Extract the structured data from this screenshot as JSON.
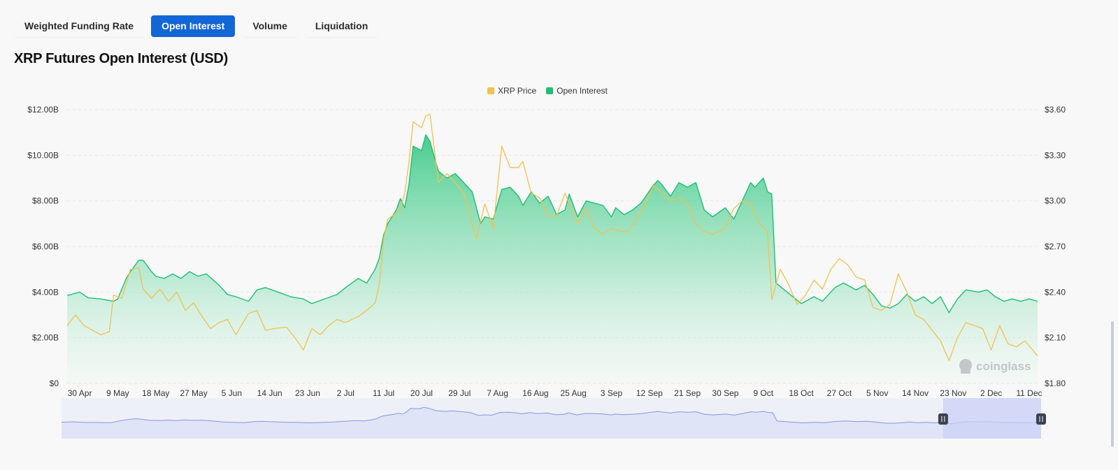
{
  "tabs": [
    {
      "label": "Weighted Funding Rate",
      "active": false
    },
    {
      "label": "Open Interest",
      "active": true
    },
    {
      "label": "Volume",
      "active": false
    },
    {
      "label": "Liquidation",
      "active": false
    }
  ],
  "title": "XRP Futures Open Interest (USD)",
  "watermark": "coinglass",
  "colors": {
    "price": "#f2c14e",
    "oi_line": "#1fbf75",
    "oi_fill_top": "#5fd39c",
    "nav_fill": "#dfe4f7",
    "nav_line": "#8797e0",
    "nav_window": "#c9d2f5",
    "active_tab": "#1366d6"
  },
  "chart_data": {
    "type": "area",
    "legend": [
      "XRP Price",
      "Open Interest"
    ],
    "legend_position": "top-center",
    "x_tick_labels": [
      "30 Apr",
      "9 May",
      "18 May",
      "27 May",
      "5 Jun",
      "14 Jun",
      "23 Jun",
      "2 Jul",
      "11 Jul",
      "20 Jul",
      "29 Jul",
      "7 Aug",
      "16 Aug",
      "25 Aug",
      "3 Sep",
      "12 Sep",
      "21 Sep",
      "30 Sep",
      "9 Oct",
      "18 Oct",
      "27 Oct",
      "5 Nov",
      "14 Nov",
      "23 Nov",
      "2 Dec",
      "11 Dec"
    ],
    "y_left": {
      "ticks": [
        "$0",
        "$2.00B",
        "$4.00B",
        "$6.00B",
        "$8.00B",
        "$10.00B",
        "$12.00B"
      ],
      "min": 0,
      "max": 12
    },
    "y_right": {
      "ticks": [
        "$1.80",
        "$2.10",
        "$2.40",
        "$2.70",
        "$3.00",
        "$3.30",
        "$3.60"
      ],
      "min": 1.8,
      "max": 3.6
    },
    "grid": true,
    "x_start": "2025-04-27",
    "x_end": "2025-12-13",
    "series": [
      {
        "name": "Open Interest",
        "axis": "left",
        "unit": "USD billions",
        "points": [
          [
            "2025-04-27",
            3.85
          ],
          [
            "2025-04-30",
            4.0
          ],
          [
            "2025-05-02",
            3.75
          ],
          [
            "2025-05-05",
            3.7
          ],
          [
            "2025-05-08",
            3.6
          ],
          [
            "2025-05-09",
            3.7
          ],
          [
            "2025-05-11",
            4.6
          ],
          [
            "2025-05-12",
            4.9
          ],
          [
            "2025-05-14",
            5.4
          ],
          [
            "2025-05-15",
            5.4
          ],
          [
            "2025-05-17",
            4.9
          ],
          [
            "2025-05-18",
            4.7
          ],
          [
            "2025-05-20",
            4.6
          ],
          [
            "2025-05-22",
            4.8
          ],
          [
            "2025-05-24",
            4.6
          ],
          [
            "2025-05-26",
            4.9
          ],
          [
            "2025-05-28",
            4.7
          ],
          [
            "2025-05-30",
            4.8
          ],
          [
            "2025-06-02",
            4.3
          ],
          [
            "2025-06-04",
            3.9
          ],
          [
            "2025-06-06",
            3.8
          ],
          [
            "2025-06-09",
            3.6
          ],
          [
            "2025-06-11",
            4.1
          ],
          [
            "2025-06-13",
            4.2
          ],
          [
            "2025-06-16",
            4.0
          ],
          [
            "2025-06-19",
            3.8
          ],
          [
            "2025-06-22",
            3.7
          ],
          [
            "2025-06-24",
            3.5
          ],
          [
            "2025-06-27",
            3.7
          ],
          [
            "2025-06-30",
            3.9
          ],
          [
            "2025-07-02",
            4.2
          ],
          [
            "2025-07-05",
            4.6
          ],
          [
            "2025-07-07",
            4.4
          ],
          [
            "2025-07-09",
            5.0
          ],
          [
            "2025-07-10",
            5.5
          ],
          [
            "2025-07-11",
            6.5
          ],
          [
            "2025-07-12",
            7.0
          ],
          [
            "2025-07-14",
            7.6
          ],
          [
            "2025-07-15",
            8.1
          ],
          [
            "2025-07-16",
            7.7
          ],
          [
            "2025-07-17",
            8.7
          ],
          [
            "2025-07-18",
            10.4
          ],
          [
            "2025-07-20",
            10.2
          ],
          [
            "2025-07-21",
            10.9
          ],
          [
            "2025-07-22",
            10.6
          ],
          [
            "2025-07-24",
            9.3
          ],
          [
            "2025-07-26",
            9.0
          ],
          [
            "2025-07-28",
            9.2
          ],
          [
            "2025-07-30",
            8.8
          ],
          [
            "2025-08-01",
            8.4
          ],
          [
            "2025-08-03",
            7.0
          ],
          [
            "2025-08-04",
            7.3
          ],
          [
            "2025-08-06",
            7.2
          ],
          [
            "2025-08-08",
            8.5
          ],
          [
            "2025-08-10",
            8.6
          ],
          [
            "2025-08-12",
            8.2
          ],
          [
            "2025-08-13",
            7.8
          ],
          [
            "2025-08-15",
            8.4
          ],
          [
            "2025-08-17",
            7.9
          ],
          [
            "2025-08-19",
            8.2
          ],
          [
            "2025-08-21",
            7.4
          ],
          [
            "2025-08-23",
            7.6
          ],
          [
            "2025-08-24",
            8.3
          ],
          [
            "2025-08-26",
            7.3
          ],
          [
            "2025-08-28",
            8.0
          ],
          [
            "2025-08-30",
            7.9
          ],
          [
            "2025-09-01",
            7.8
          ],
          [
            "2025-09-03",
            7.3
          ],
          [
            "2025-09-04",
            7.7
          ],
          [
            "2025-09-06",
            7.4
          ],
          [
            "2025-09-08",
            7.6
          ],
          [
            "2025-09-10",
            7.9
          ],
          [
            "2025-09-13",
            8.7
          ],
          [
            "2025-09-14",
            8.9
          ],
          [
            "2025-09-15",
            8.7
          ],
          [
            "2025-09-17",
            8.2
          ],
          [
            "2025-09-19",
            8.8
          ],
          [
            "2025-09-21",
            8.6
          ],
          [
            "2025-09-23",
            8.8
          ],
          [
            "2025-09-25",
            7.6
          ],
          [
            "2025-09-27",
            7.3
          ],
          [
            "2025-09-30",
            7.7
          ],
          [
            "2025-10-02",
            7.2
          ],
          [
            "2025-10-04",
            8.0
          ],
          [
            "2025-10-06",
            8.8
          ],
          [
            "2025-10-07",
            8.6
          ],
          [
            "2025-10-09",
            9.0
          ],
          [
            "2025-10-10",
            8.4
          ],
          [
            "2025-10-11",
            8.3
          ],
          [
            "2025-10-12",
            4.4
          ],
          [
            "2025-10-14",
            4.1
          ],
          [
            "2025-10-16",
            3.8
          ],
          [
            "2025-10-18",
            3.5
          ],
          [
            "2025-10-21",
            3.8
          ],
          [
            "2025-10-23",
            3.6
          ],
          [
            "2025-10-26",
            4.2
          ],
          [
            "2025-10-28",
            4.4
          ],
          [
            "2025-10-31",
            4.1
          ],
          [
            "2025-11-02",
            4.3
          ],
          [
            "2025-11-04",
            3.9
          ],
          [
            "2025-11-06",
            3.4
          ],
          [
            "2025-11-08",
            3.3
          ],
          [
            "2025-11-10",
            3.5
          ],
          [
            "2025-11-12",
            3.9
          ],
          [
            "2025-11-14",
            3.6
          ],
          [
            "2025-11-16",
            3.8
          ],
          [
            "2025-11-18",
            3.5
          ],
          [
            "2025-11-20",
            3.8
          ],
          [
            "2025-11-22",
            3.1
          ],
          [
            "2025-11-24",
            3.7
          ],
          [
            "2025-11-26",
            4.1
          ],
          [
            "2025-11-29",
            4.0
          ],
          [
            "2025-12-01",
            4.1
          ],
          [
            "2025-12-03",
            3.8
          ],
          [
            "2025-12-05",
            3.6
          ],
          [
            "2025-12-07",
            3.7
          ],
          [
            "2025-12-09",
            3.6
          ],
          [
            "2025-12-11",
            3.7
          ],
          [
            "2025-12-13",
            3.6
          ]
        ]
      },
      {
        "name": "XRP Price",
        "axis": "right",
        "unit": "USD",
        "points": [
          [
            "2025-04-27",
            2.18
          ],
          [
            "2025-04-29",
            2.25
          ],
          [
            "2025-05-01",
            2.18
          ],
          [
            "2025-05-03",
            2.15
          ],
          [
            "2025-05-05",
            2.12
          ],
          [
            "2025-05-07",
            2.14
          ],
          [
            "2025-05-08",
            2.38
          ],
          [
            "2025-05-10",
            2.36
          ],
          [
            "2025-05-12",
            2.55
          ],
          [
            "2025-05-14",
            2.56
          ],
          [
            "2025-05-15",
            2.42
          ],
          [
            "2025-05-17",
            2.36
          ],
          [
            "2025-05-19",
            2.42
          ],
          [
            "2025-05-21",
            2.34
          ],
          [
            "2025-05-23",
            2.4
          ],
          [
            "2025-05-25",
            2.28
          ],
          [
            "2025-05-27",
            2.33
          ],
          [
            "2025-05-29",
            2.24
          ],
          [
            "2025-05-31",
            2.16
          ],
          [
            "2025-06-02",
            2.2
          ],
          [
            "2025-06-04",
            2.22
          ],
          [
            "2025-06-06",
            2.12
          ],
          [
            "2025-06-09",
            2.26
          ],
          [
            "2025-06-11",
            2.28
          ],
          [
            "2025-06-13",
            2.15
          ],
          [
            "2025-06-15",
            2.16
          ],
          [
            "2025-06-18",
            2.17
          ],
          [
            "2025-06-20",
            2.1
          ],
          [
            "2025-06-22",
            2.02
          ],
          [
            "2025-06-24",
            2.16
          ],
          [
            "2025-06-26",
            2.12
          ],
          [
            "2025-06-28",
            2.18
          ],
          [
            "2025-06-30",
            2.22
          ],
          [
            "2025-07-02",
            2.2
          ],
          [
            "2025-07-05",
            2.24
          ],
          [
            "2025-07-07",
            2.28
          ],
          [
            "2025-07-09",
            2.33
          ],
          [
            "2025-07-10",
            2.45
          ],
          [
            "2025-07-11",
            2.75
          ],
          [
            "2025-07-12",
            2.88
          ],
          [
            "2025-07-14",
            2.92
          ],
          [
            "2025-07-15",
            2.95
          ],
          [
            "2025-07-16",
            3.05
          ],
          [
            "2025-07-17",
            3.25
          ],
          [
            "2025-07-18",
            3.52
          ],
          [
            "2025-07-20",
            3.48
          ],
          [
            "2025-07-21",
            3.56
          ],
          [
            "2025-07-22",
            3.57
          ],
          [
            "2025-07-24",
            3.12
          ],
          [
            "2025-07-26",
            3.18
          ],
          [
            "2025-07-28",
            3.12
          ],
          [
            "2025-07-30",
            3.05
          ],
          [
            "2025-08-02",
            2.75
          ],
          [
            "2025-08-04",
            2.98
          ],
          [
            "2025-08-06",
            2.82
          ],
          [
            "2025-08-08",
            3.36
          ],
          [
            "2025-08-10",
            3.22
          ],
          [
            "2025-08-12",
            3.22
          ],
          [
            "2025-08-13",
            3.26
          ],
          [
            "2025-08-15",
            3.05
          ],
          [
            "2025-08-17",
            3.02
          ],
          [
            "2025-08-19",
            2.9
          ],
          [
            "2025-08-21",
            2.9
          ],
          [
            "2025-08-23",
            3.05
          ],
          [
            "2025-08-26",
            2.85
          ],
          [
            "2025-08-28",
            2.95
          ],
          [
            "2025-08-30",
            2.82
          ],
          [
            "2025-09-01",
            2.78
          ],
          [
            "2025-09-03",
            2.82
          ],
          [
            "2025-09-05",
            2.8
          ],
          [
            "2025-09-07",
            2.8
          ],
          [
            "2025-09-09",
            2.88
          ],
          [
            "2025-09-11",
            2.98
          ],
          [
            "2025-09-13",
            3.1
          ],
          [
            "2025-09-15",
            3.05
          ],
          [
            "2025-09-17",
            3.0
          ],
          [
            "2025-09-19",
            3.02
          ],
          [
            "2025-09-21",
            2.98
          ],
          [
            "2025-09-23",
            2.85
          ],
          [
            "2025-09-25",
            2.8
          ],
          [
            "2025-09-27",
            2.78
          ],
          [
            "2025-09-30",
            2.82
          ],
          [
            "2025-10-02",
            2.95
          ],
          [
            "2025-10-04",
            3.0
          ],
          [
            "2025-10-06",
            2.98
          ],
          [
            "2025-10-08",
            2.85
          ],
          [
            "2025-10-10",
            2.8
          ],
          [
            "2025-10-11",
            2.35
          ],
          [
            "2025-10-13",
            2.55
          ],
          [
            "2025-10-15",
            2.45
          ],
          [
            "2025-10-17",
            2.32
          ],
          [
            "2025-10-19",
            2.38
          ],
          [
            "2025-10-21",
            2.48
          ],
          [
            "2025-10-23",
            2.42
          ],
          [
            "2025-10-25",
            2.55
          ],
          [
            "2025-10-27",
            2.62
          ],
          [
            "2025-10-29",
            2.58
          ],
          [
            "2025-10-31",
            2.5
          ],
          [
            "2025-11-02",
            2.48
          ],
          [
            "2025-11-04",
            2.3
          ],
          [
            "2025-11-06",
            2.28
          ],
          [
            "2025-11-08",
            2.32
          ],
          [
            "2025-11-10",
            2.52
          ],
          [
            "2025-11-12",
            2.4
          ],
          [
            "2025-11-14",
            2.25
          ],
          [
            "2025-11-16",
            2.22
          ],
          [
            "2025-11-18",
            2.15
          ],
          [
            "2025-11-20",
            2.08
          ],
          [
            "2025-11-22",
            1.95
          ],
          [
            "2025-11-24",
            2.1
          ],
          [
            "2025-11-26",
            2.2
          ],
          [
            "2025-11-28",
            2.18
          ],
          [
            "2025-11-30",
            2.16
          ],
          [
            "2025-12-02",
            2.02
          ],
          [
            "2025-12-04",
            2.18
          ],
          [
            "2025-12-06",
            2.06
          ],
          [
            "2025-12-08",
            2.04
          ],
          [
            "2025-12-10",
            2.08
          ],
          [
            "2025-12-13",
            1.98
          ]
        ]
      }
    ],
    "navigator": {
      "selection_start": "2025-11-20",
      "selection_end": "2025-12-13"
    }
  }
}
